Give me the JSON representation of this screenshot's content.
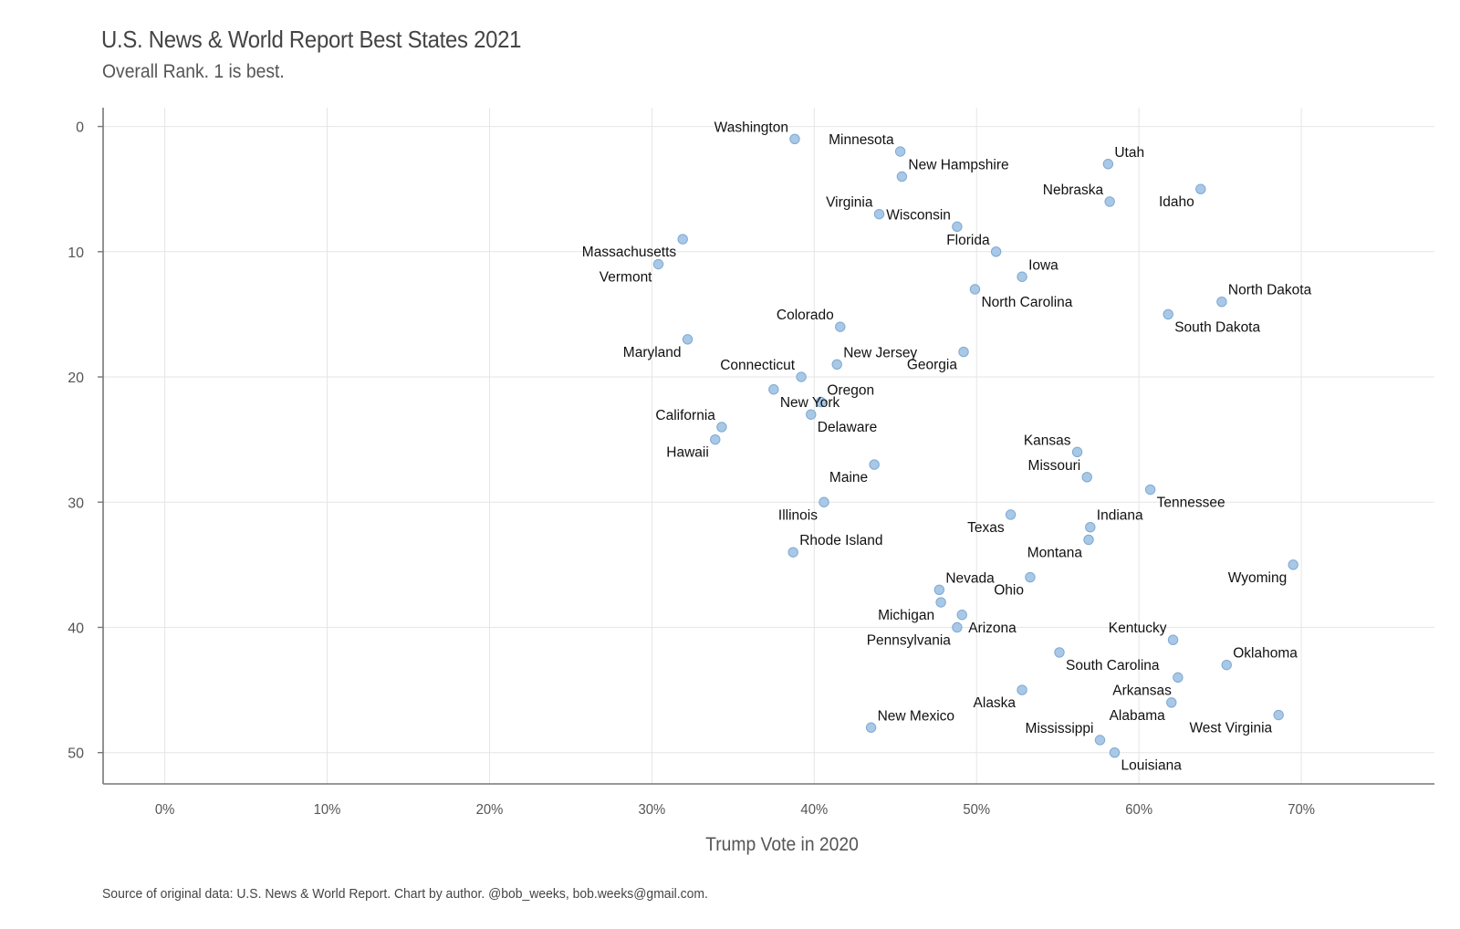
{
  "chart_data": {
    "type": "scatter",
    "title": "U.S. News & World Report Best States 2021",
    "subtitle": "Overall Rank. 1 is best.",
    "caption": "Source of original data: U.S. News & World Report. Chart by author. @bob_weeks, bob.weeks@gmail.com.",
    "xlabel": "Trump Vote in 2020",
    "ylabel": "",
    "x_format": "percent",
    "xlim": [
      -0.038,
      0.782
    ],
    "ylim": [
      52.5,
      -1.5
    ],
    "y_reversed": true,
    "x_ticks": [
      0,
      0.1,
      0.2,
      0.3,
      0.4,
      0.5,
      0.6,
      0.7
    ],
    "x_tick_labels": [
      "0%",
      "10%",
      "20%",
      "30%",
      "40%",
      "50%",
      "60%",
      "70%"
    ],
    "y_ticks": [
      0,
      10,
      20,
      30,
      40,
      50
    ],
    "y_tick_labels": [
      "0",
      "10",
      "20",
      "30",
      "40",
      "50"
    ],
    "grid": true,
    "point_color": "#a8c8e6",
    "point_stroke": "#7fa9d4",
    "points": [
      {
        "label": "Washington",
        "x": 0.388,
        "y": 1,
        "pos": "top-left"
      },
      {
        "label": "Minnesota",
        "x": 0.453,
        "y": 2,
        "pos": "top-left"
      },
      {
        "label": "Utah",
        "x": 0.581,
        "y": 3,
        "pos": "top-right"
      },
      {
        "label": "New Hampshire",
        "x": 0.454,
        "y": 4,
        "pos": "top-right"
      },
      {
        "label": "Idaho",
        "x": 0.638,
        "y": 5,
        "pos": "bottom-left"
      },
      {
        "label": "Nebraska",
        "x": 0.582,
        "y": 6,
        "pos": "top-left"
      },
      {
        "label": "Virginia",
        "x": 0.44,
        "y": 7,
        "pos": "top-left"
      },
      {
        "label": "Wisconsin",
        "x": 0.488,
        "y": 8,
        "pos": "top-left"
      },
      {
        "label": "Massachusetts",
        "x": 0.319,
        "y": 9,
        "pos": "bottom-left"
      },
      {
        "label": "Florida",
        "x": 0.512,
        "y": 10,
        "pos": "top-left"
      },
      {
        "label": "Vermont",
        "x": 0.304,
        "y": 11,
        "pos": "bottom-left"
      },
      {
        "label": "Iowa",
        "x": 0.528,
        "y": 12,
        "pos": "top-right"
      },
      {
        "label": "North Carolina",
        "x": 0.499,
        "y": 13,
        "pos": "bottom-right"
      },
      {
        "label": "North Dakota",
        "x": 0.651,
        "y": 14,
        "pos": "top-right"
      },
      {
        "label": "South Dakota",
        "x": 0.618,
        "y": 15,
        "pos": "bottom-right"
      },
      {
        "label": "Colorado",
        "x": 0.416,
        "y": 16,
        "pos": "top-left"
      },
      {
        "label": "Maryland",
        "x": 0.322,
        "y": 17,
        "pos": "bottom-left"
      },
      {
        "label": "Georgia",
        "x": 0.492,
        "y": 18,
        "pos": "bottom-left"
      },
      {
        "label": "New Jersey",
        "x": 0.414,
        "y": 19,
        "pos": "top-right"
      },
      {
        "label": "Connecticut",
        "x": 0.392,
        "y": 20,
        "pos": "top-left"
      },
      {
        "label": "New York",
        "x": 0.375,
        "y": 21,
        "pos": "bottom-right"
      },
      {
        "label": "Oregon",
        "x": 0.404,
        "y": 22,
        "pos": "top-right"
      },
      {
        "label": "Delaware",
        "x": 0.398,
        "y": 23,
        "pos": "bottom-right"
      },
      {
        "label": "California",
        "x": 0.343,
        "y": 24,
        "pos": "top-left"
      },
      {
        "label": "Hawaii",
        "x": 0.339,
        "y": 25,
        "pos": "bottom-left"
      },
      {
        "label": "Kansas",
        "x": 0.562,
        "y": 26,
        "pos": "top-left"
      },
      {
        "label": "Maine",
        "x": 0.437,
        "y": 27,
        "pos": "bottom-left"
      },
      {
        "label": "Missouri",
        "x": 0.568,
        "y": 28,
        "pos": "top-left"
      },
      {
        "label": "Tennessee",
        "x": 0.607,
        "y": 29,
        "pos": "bottom-right"
      },
      {
        "label": "Illinois",
        "x": 0.406,
        "y": 30,
        "pos": "bottom-left"
      },
      {
        "label": "Texas",
        "x": 0.521,
        "y": 31,
        "pos": "bottom-left"
      },
      {
        "label": "Indiana",
        "x": 0.57,
        "y": 32,
        "pos": "top-right"
      },
      {
        "label": "Montana",
        "x": 0.569,
        "y": 33,
        "pos": "bottom-left"
      },
      {
        "label": "Rhode Island",
        "x": 0.387,
        "y": 34,
        "pos": "top-right"
      },
      {
        "label": "Wyoming",
        "x": 0.695,
        "y": 35,
        "pos": "bottom-left"
      },
      {
        "label": "Ohio",
        "x": 0.533,
        "y": 36,
        "pos": "bottom-left"
      },
      {
        "label": "Nevada",
        "x": 0.477,
        "y": 37,
        "pos": "top-right"
      },
      {
        "label": "Michigan",
        "x": 0.478,
        "y": 38,
        "pos": "bottom-left"
      },
      {
        "label": "Arizona",
        "x": 0.491,
        "y": 39,
        "pos": "bottom-right"
      },
      {
        "label": "Pennsylvania",
        "x": 0.488,
        "y": 40,
        "pos": "bottom-left"
      },
      {
        "label": "Kentucky",
        "x": 0.621,
        "y": 41,
        "pos": "top-left"
      },
      {
        "label": "South Carolina",
        "x": 0.551,
        "y": 42,
        "pos": "bottom-right"
      },
      {
        "label": "Oklahoma",
        "x": 0.654,
        "y": 43,
        "pos": "top-right"
      },
      {
        "label": "Arkansas",
        "x": 0.624,
        "y": 44,
        "pos": "bottom-left"
      },
      {
        "label": "Alaska",
        "x": 0.528,
        "y": 45,
        "pos": "bottom-left"
      },
      {
        "label": "Alabama",
        "x": 0.62,
        "y": 46,
        "pos": "bottom-left"
      },
      {
        "label": "West Virginia",
        "x": 0.686,
        "y": 47,
        "pos": "bottom-left"
      },
      {
        "label": "New Mexico",
        "x": 0.435,
        "y": 48,
        "pos": "top-right"
      },
      {
        "label": "Mississippi",
        "x": 0.576,
        "y": 49,
        "pos": "top-left"
      },
      {
        "label": "Louisiana",
        "x": 0.585,
        "y": 50,
        "pos": "bottom-right"
      }
    ]
  }
}
